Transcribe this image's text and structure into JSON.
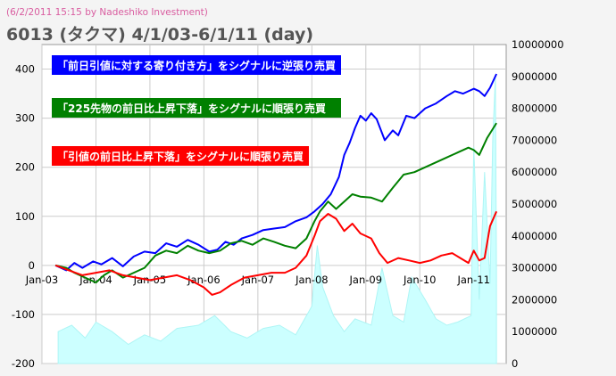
{
  "header": {
    "timestamp": "(6/2/2011 15:15 by Nadeshiko Investment)",
    "title": "6013 (タクマ)  4/1/03-6/1/11 (day)"
  },
  "chart_data": {
    "type": "line",
    "x_tick_labels": [
      "Jan-03",
      "Jan-04",
      "Jan-05",
      "Jan-06",
      "Jan-07",
      "Jan-08",
      "Jan-09",
      "Jan-10",
      "Jan-11"
    ],
    "y_left": {
      "ylim": [
        -200,
        450
      ],
      "ticks": [
        "400",
        "300",
        "200",
        "100",
        "0",
        "-100",
        "-200"
      ]
    },
    "y_right": {
      "ylim": [
        0,
        10000000
      ],
      "ticks": [
        "10000000",
        "9000000",
        "8000000",
        "7000000",
        "6000000",
        "5000000",
        "4000000",
        "3000000",
        "2000000",
        "1000000",
        "0"
      ]
    },
    "grid": true,
    "series": [
      {
        "name": "「前日引値に対する寄り付き方」をシグナルに逆張り売買",
        "color": "#0000ff",
        "axis": "left",
        "points": [
          [
            2003.25,
            0
          ],
          [
            2003.45,
            -10
          ],
          [
            2003.6,
            5
          ],
          [
            2003.75,
            -5
          ],
          [
            2003.95,
            8
          ],
          [
            2004.1,
            2
          ],
          [
            2004.3,
            15
          ],
          [
            2004.5,
            -2
          ],
          [
            2004.7,
            18
          ],
          [
            2004.9,
            28
          ],
          [
            2005.1,
            25
          ],
          [
            2005.3,
            45
          ],
          [
            2005.5,
            38
          ],
          [
            2005.7,
            52
          ],
          [
            2005.9,
            42
          ],
          [
            2006.1,
            28
          ],
          [
            2006.25,
            32
          ],
          [
            2006.4,
            48
          ],
          [
            2006.55,
            42
          ],
          [
            2006.7,
            55
          ],
          [
            2006.9,
            62
          ],
          [
            2007.1,
            72
          ],
          [
            2007.3,
            75
          ],
          [
            2007.5,
            78
          ],
          [
            2007.7,
            90
          ],
          [
            2007.9,
            98
          ],
          [
            2008.05,
            110
          ],
          [
            2008.2,
            125
          ],
          [
            2008.35,
            145
          ],
          [
            2008.5,
            180
          ],
          [
            2008.6,
            225
          ],
          [
            2008.7,
            250
          ],
          [
            2008.8,
            280
          ],
          [
            2008.9,
            305
          ],
          [
            2009.0,
            295
          ],
          [
            2009.1,
            310
          ],
          [
            2009.2,
            298
          ],
          [
            2009.35,
            255
          ],
          [
            2009.5,
            275
          ],
          [
            2009.6,
            265
          ],
          [
            2009.75,
            305
          ],
          [
            2009.9,
            300
          ],
          [
            2010.1,
            320
          ],
          [
            2010.3,
            330
          ],
          [
            2010.5,
            345
          ],
          [
            2010.65,
            355
          ],
          [
            2010.8,
            350
          ],
          [
            2011.0,
            360
          ],
          [
            2011.1,
            355
          ],
          [
            2011.2,
            345
          ],
          [
            2011.3,
            362
          ],
          [
            2011.42,
            390
          ]
        ]
      },
      {
        "name": "「225先物の前日比上昇下落」をシグナルに順張り売買",
        "color": "#008000",
        "axis": "left",
        "points": [
          [
            2003.25,
            0
          ],
          [
            2003.45,
            -5
          ],
          [
            2003.6,
            -15
          ],
          [
            2003.8,
            -25
          ],
          [
            2004.0,
            -35
          ],
          [
            2004.15,
            -20
          ],
          [
            2004.3,
            -10
          ],
          [
            2004.5,
            -25
          ],
          [
            2004.7,
            -15
          ],
          [
            2004.9,
            -5
          ],
          [
            2005.1,
            20
          ],
          [
            2005.3,
            30
          ],
          [
            2005.5,
            25
          ],
          [
            2005.7,
            40
          ],
          [
            2005.9,
            30
          ],
          [
            2006.1,
            25
          ],
          [
            2006.3,
            30
          ],
          [
            2006.5,
            45
          ],
          [
            2006.7,
            50
          ],
          [
            2006.9,
            42
          ],
          [
            2007.1,
            55
          ],
          [
            2007.3,
            48
          ],
          [
            2007.5,
            40
          ],
          [
            2007.7,
            35
          ],
          [
            2007.9,
            55
          ],
          [
            2008.05,
            90
          ],
          [
            2008.15,
            110
          ],
          [
            2008.3,
            130
          ],
          [
            2008.45,
            115
          ],
          [
            2008.6,
            130
          ],
          [
            2008.75,
            145
          ],
          [
            2008.9,
            140
          ],
          [
            2009.1,
            138
          ],
          [
            2009.3,
            130
          ],
          [
            2009.5,
            158
          ],
          [
            2009.7,
            185
          ],
          [
            2009.9,
            190
          ],
          [
            2010.1,
            200
          ],
          [
            2010.3,
            210
          ],
          [
            2010.5,
            220
          ],
          [
            2010.7,
            230
          ],
          [
            2010.9,
            240
          ],
          [
            2011.0,
            235
          ],
          [
            2011.1,
            225
          ],
          [
            2011.25,
            260
          ],
          [
            2011.42,
            290
          ]
        ]
      },
      {
        "name": "「引値の前日比上昇下落」をシグナルに順張り売買",
        "color": "#ff0000",
        "axis": "left",
        "points": [
          [
            2003.25,
            0
          ],
          [
            2003.5,
            -10
          ],
          [
            2003.75,
            -20
          ],
          [
            2004.0,
            -15
          ],
          [
            2004.25,
            -10
          ],
          [
            2004.5,
            -20
          ],
          [
            2004.75,
            -25
          ],
          [
            2005.0,
            -30
          ],
          [
            2005.25,
            -25
          ],
          [
            2005.5,
            -20
          ],
          [
            2005.75,
            -30
          ],
          [
            2006.0,
            -45
          ],
          [
            2006.15,
            -60
          ],
          [
            2006.3,
            -55
          ],
          [
            2006.5,
            -40
          ],
          [
            2006.75,
            -25
          ],
          [
            2007.0,
            -20
          ],
          [
            2007.25,
            -15
          ],
          [
            2007.5,
            -15
          ],
          [
            2007.7,
            -5
          ],
          [
            2007.9,
            20
          ],
          [
            2008.05,
            60
          ],
          [
            2008.15,
            90
          ],
          [
            2008.3,
            105
          ],
          [
            2008.45,
            95
          ],
          [
            2008.6,
            70
          ],
          [
            2008.75,
            85
          ],
          [
            2008.9,
            65
          ],
          [
            2009.1,
            55
          ],
          [
            2009.25,
            25
          ],
          [
            2009.4,
            5
          ],
          [
            2009.6,
            15
          ],
          [
            2009.8,
            10
          ],
          [
            2010.0,
            5
          ],
          [
            2010.2,
            10
          ],
          [
            2010.4,
            20
          ],
          [
            2010.6,
            25
          ],
          [
            2010.75,
            15
          ],
          [
            2010.9,
            5
          ],
          [
            2011.0,
            30
          ],
          [
            2011.1,
            10
          ],
          [
            2011.2,
            15
          ],
          [
            2011.3,
            80
          ],
          [
            2011.42,
            110
          ]
        ]
      },
      {
        "name": "volume",
        "color": "#ccffff",
        "axis": "right",
        "points": [
          [
            2003.3,
            1000000
          ],
          [
            2003.55,
            1200000
          ],
          [
            2003.8,
            800000
          ],
          [
            2004.0,
            1300000
          ],
          [
            2004.3,
            1000000
          ],
          [
            2004.6,
            600000
          ],
          [
            2004.9,
            900000
          ],
          [
            2005.2,
            700000
          ],
          [
            2005.5,
            1100000
          ],
          [
            2005.9,
            1200000
          ],
          [
            2006.2,
            1500000
          ],
          [
            2006.5,
            1000000
          ],
          [
            2006.8,
            800000
          ],
          [
            2007.1,
            1100000
          ],
          [
            2007.4,
            1200000
          ],
          [
            2007.7,
            900000
          ],
          [
            2008.0,
            1800000
          ],
          [
            2008.1,
            3700000
          ],
          [
            2008.2,
            2400000
          ],
          [
            2008.4,
            1500000
          ],
          [
            2008.6,
            1000000
          ],
          [
            2008.8,
            1400000
          ],
          [
            2009.1,
            1200000
          ],
          [
            2009.3,
            3000000
          ],
          [
            2009.5,
            1500000
          ],
          [
            2009.7,
            1300000
          ],
          [
            2009.85,
            2700000
          ],
          [
            2010.1,
            2000000
          ],
          [
            2010.3,
            1400000
          ],
          [
            2010.5,
            1200000
          ],
          [
            2010.7,
            1300000
          ],
          [
            2010.95,
            1500000
          ],
          [
            2011.0,
            6800000
          ],
          [
            2011.1,
            2000000
          ],
          [
            2011.2,
            6000000
          ],
          [
            2011.3,
            2500000
          ],
          [
            2011.35,
            7000000
          ],
          [
            2011.4,
            9000000
          ],
          [
            2011.42,
            3000000
          ]
        ]
      }
    ]
  },
  "legend": [
    {
      "label": "「前日引値に対する寄り付き方」をシグナルに逆張り売買",
      "bg": "#0000ff"
    },
    {
      "label": "「225先物の前日比上昇下落」をシグナルに順張り売買",
      "bg": "#008000"
    },
    {
      "label": "「引値の前日比上昇下落」をシグナルに順張り売買",
      "bg": "#ff0000"
    }
  ]
}
